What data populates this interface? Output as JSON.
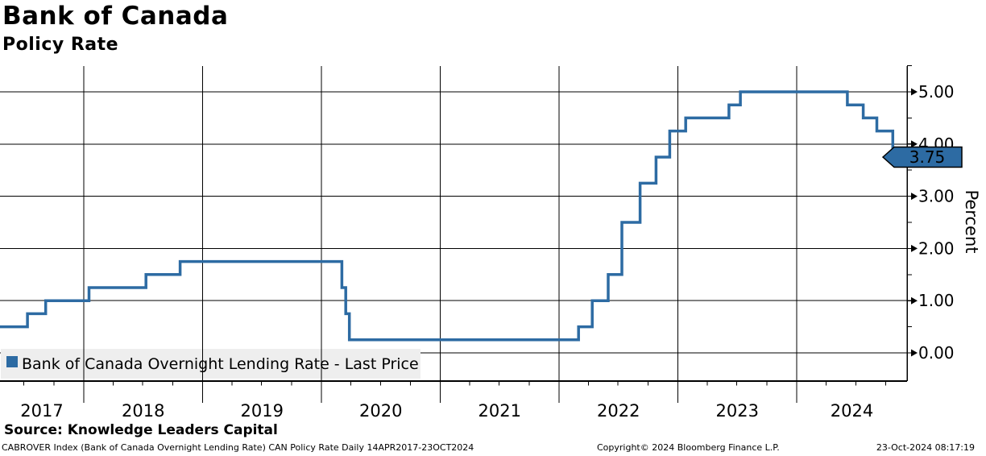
{
  "header": {
    "title": "Bank of Canada",
    "subtitle": "Policy Rate"
  },
  "legend": {
    "label": "Bank of Canada Overnight Lending Rate - Last Price"
  },
  "y_axis": {
    "label": "Percent"
  },
  "last_price_badge": {
    "text": "3.75"
  },
  "footer": {
    "source": "Source: Knowledge Leaders Capital",
    "meta": "CABROVER Index (Bank of Canada Overnight Lending Rate) CAN Policy Rate  Daily 14APR2017-23OCT2024",
    "copyright": "Copyright© 2024 Bloomberg Finance L.P.",
    "timestamp": "23-Oct-2024 08:17:19"
  },
  "colors": {
    "line": "#2d6ba3",
    "badge_bg": "#2d6ba3",
    "badge_border": "#000000",
    "badge_text": "#ffffff",
    "legend_bg": "#eeeeee",
    "grid": "#000000",
    "axis": "#000000"
  },
  "chart_data": {
    "type": "line",
    "step": "after",
    "title": "Bank of Canada",
    "subtitle": "Policy Rate",
    "xlabel": "",
    "ylabel": "Percent",
    "ylim": [
      -0.54,
      5.5
    ],
    "grid": true,
    "legend_position": "bottom-left",
    "yticks_major": [
      0,
      1,
      2,
      3,
      4,
      5
    ],
    "ytick_labels": [
      "0.00",
      "1.00",
      "2.00",
      "3.00",
      "4.00",
      "5.00"
    ],
    "yticks_minor": [
      0.5,
      1.5,
      2.5,
      3.5,
      4.5,
      5.5
    ],
    "x_range_dates": [
      "2017-04-14",
      "2024-12-08"
    ],
    "x_year_boundaries": [
      2018,
      2019,
      2020,
      2021,
      2022,
      2023,
      2024
    ],
    "xtick_labels": [
      "2017",
      "2018",
      "2019",
      "2020",
      "2021",
      "2022",
      "2023",
      "2024"
    ],
    "last_price": 3.75,
    "series": [
      {
        "name": "Bank of Canada Overnight Lending Rate - Last Price",
        "color": "#2d6ba3",
        "points": [
          {
            "date": "2017-04-14",
            "value": 0.5
          },
          {
            "date": "2017-07-12",
            "value": 0.75
          },
          {
            "date": "2017-09-06",
            "value": 1.0
          },
          {
            "date": "2018-01-17",
            "value": 1.25
          },
          {
            "date": "2018-07-11",
            "value": 1.5
          },
          {
            "date": "2018-10-24",
            "value": 1.75
          },
          {
            "date": "2020-03-04",
            "value": 1.25
          },
          {
            "date": "2020-03-16",
            "value": 0.75
          },
          {
            "date": "2020-03-27",
            "value": 0.25
          },
          {
            "date": "2022-03-02",
            "value": 0.5
          },
          {
            "date": "2022-04-13",
            "value": 1.0
          },
          {
            "date": "2022-06-01",
            "value": 1.5
          },
          {
            "date": "2022-07-13",
            "value": 2.5
          },
          {
            "date": "2022-09-07",
            "value": 3.25
          },
          {
            "date": "2022-10-26",
            "value": 3.75
          },
          {
            "date": "2022-12-07",
            "value": 4.25
          },
          {
            "date": "2023-01-25",
            "value": 4.5
          },
          {
            "date": "2023-06-07",
            "value": 4.75
          },
          {
            "date": "2023-07-12",
            "value": 5.0
          },
          {
            "date": "2024-06-05",
            "value": 4.75
          },
          {
            "date": "2024-07-24",
            "value": 4.5
          },
          {
            "date": "2024-09-04",
            "value": 4.25
          },
          {
            "date": "2024-10-23",
            "value": 3.75
          }
        ]
      }
    ]
  }
}
